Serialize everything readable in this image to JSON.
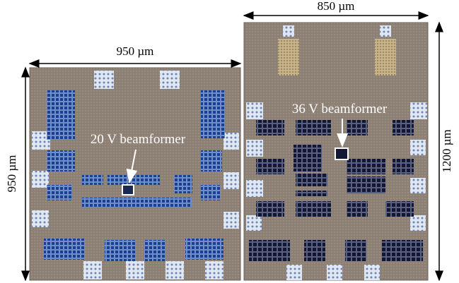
{
  "left_die": {
    "width_label": "950 µm",
    "height_label": "950 µm",
    "annotation": "20 V beamformer"
  },
  "right_die": {
    "width_label": "850 µm",
    "height_label": "1200 µm",
    "annotation": "36 V beamformer"
  }
}
